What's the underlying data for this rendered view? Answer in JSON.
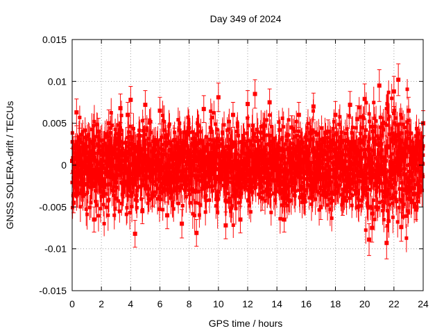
{
  "chart_data": {
    "type": "scatter",
    "title": "Day 349 of 2024",
    "xlabel": "GPS time / hours",
    "ylabel": "GNSS SOLERA-drift / TECUs",
    "xlim": [
      0,
      24
    ],
    "ylim": [
      -0.015,
      0.015
    ],
    "x_ticks": [
      0,
      2,
      4,
      6,
      8,
      10,
      12,
      14,
      16,
      18,
      20,
      22,
      24
    ],
    "x_tick_labels": [
      "0",
      "2",
      "4",
      "6",
      "8",
      "10",
      "12",
      "14",
      "16",
      "18",
      "20",
      "22",
      "24"
    ],
    "y_ticks": [
      -0.015,
      -0.01,
      -0.005,
      0,
      0.005,
      0.01,
      0.015
    ],
    "y_tick_labels": [
      "-0.015",
      "-0.01",
      "-0.005",
      "0",
      "0.005",
      "0.01",
      "0.015"
    ],
    "grid": true,
    "legend": "none",
    "color": "#ff0000",
    "error_bars": true,
    "series": [
      {
        "x": [
          0.0,
          0.1,
          0.2,
          0.3,
          0.5,
          0.8,
          1.0,
          1.5,
          1.8,
          2.0,
          2.5,
          3.0,
          3.3,
          3.5,
          3.8,
          4.0,
          4.3,
          4.5,
          4.8,
          5.0,
          5.5,
          6.0,
          6.5,
          7.0,
          7.5,
          8.0,
          8.5,
          9.0,
          9.5,
          10.0,
          10.5,
          11.0,
          11.5,
          12.0,
          12.5,
          13.0,
          13.5,
          14.0,
          14.5,
          15.0,
          15.5,
          16.0,
          16.5,
          17.0,
          17.5,
          18.0,
          18.5,
          19.0,
          19.5,
          20.0,
          20.3,
          20.5,
          21.0,
          21.5,
          22.0,
          22.3,
          22.5,
          23.0,
          23.5,
          24.0
        ],
        "y": [
          0.0005,
          -0.0045,
          0.002,
          0.0063,
          0.003,
          -0.001,
          0.0015,
          -0.0065,
          0.004,
          -0.002,
          0.005,
          -0.004,
          0.0068,
          -0.0025,
          0.006,
          0.0078,
          -0.0082,
          0.002,
          -0.0055,
          0.0072,
          -0.0035,
          0.0065,
          -0.006,
          0.003,
          -0.007,
          0.0005,
          -0.0081,
          0.0067,
          0.004,
          0.0081,
          -0.0072,
          0.006,
          -0.0065,
          0.0073,
          0.0085,
          -0.004,
          0.0075,
          0.001,
          -0.0065,
          0.0045,
          0.006,
          -0.003,
          0.007,
          -0.005,
          0.004,
          0.006,
          -0.0045,
          0.0072,
          0.0055,
          0.0079,
          -0.0089,
          -0.0075,
          0.0095,
          -0.0093,
          0.0088,
          0.0102,
          -0.0074,
          0.0065,
          -0.005,
          0.005
        ],
        "err": [
          0.0015,
          0.0012,
          0.0014,
          0.0016,
          0.0014,
          0.0013,
          0.0015,
          0.0015,
          0.0016,
          0.0014,
          0.0016,
          0.0014,
          0.0017,
          0.0014,
          0.0015,
          0.0016,
          0.0016,
          0.0014,
          0.0015,
          0.0017,
          0.0014,
          0.0016,
          0.0016,
          0.0014,
          0.0017,
          0.0013,
          0.0016,
          0.0016,
          0.0015,
          0.0017,
          0.0016,
          0.0015,
          0.0016,
          0.0016,
          0.0017,
          0.0014,
          0.0016,
          0.0013,
          0.0015,
          0.0014,
          0.0015,
          0.0014,
          0.0016,
          0.0015,
          0.0014,
          0.0016,
          0.0015,
          0.0016,
          0.0016,
          0.0018,
          0.0019,
          0.0017,
          0.0019,
          0.0019,
          0.0018,
          0.0019,
          0.0017,
          0.0016,
          0.0015,
          0.0015
        ]
      }
    ]
  }
}
